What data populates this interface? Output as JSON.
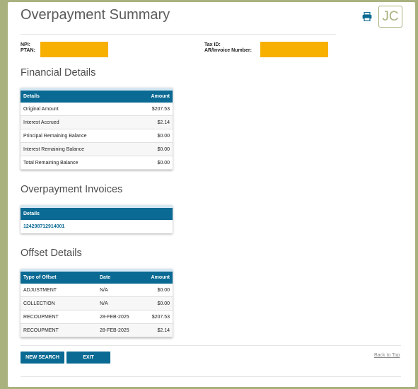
{
  "page": {
    "title": "Overpayment Summary",
    "user_initials": "JC"
  },
  "identity": {
    "npi_label": "NPI:",
    "ptan_label": "PTAN:",
    "tax_id_label": "Tax ID:",
    "ar_invoice_label": "AR/Invoice Number:",
    "redaction_color": "#f8b000"
  },
  "financial": {
    "title": "Financial Details",
    "headers": [
      "Details",
      "Amount"
    ],
    "rows": [
      [
        "Original Amount",
        "$207.53"
      ],
      [
        "Interest Accrued",
        "$2.14"
      ],
      [
        "Principal Remaining Balance",
        "$0.00"
      ],
      [
        "Interest Remaining Balance",
        "$0.00"
      ],
      [
        "Total Remaining Balance",
        "$0.00"
      ]
    ]
  },
  "invoices": {
    "title": "Overpayment Invoices",
    "header": "Details",
    "items": [
      "124298712914001"
    ]
  },
  "offset": {
    "title": "Offset Details",
    "headers": [
      "Type of Offset",
      "Date",
      "Amount"
    ],
    "rows": [
      [
        "ADJUSTMENT",
        "N/A",
        "$0.00"
      ],
      [
        "COLLECTION",
        "N/A",
        "$0.00"
      ],
      [
        "RECOUPMENT",
        "28-FEB-2025",
        "$207.53"
      ],
      [
        "RECOUPMENT",
        "28-FEB-2025",
        "$2.14"
      ]
    ]
  },
  "actions": {
    "new_search": "NEW SEARCH",
    "exit": "EXIT",
    "back_to_top": "Back to Top"
  },
  "colors": {
    "accent": "#0a6a93",
    "frame": "#a9b27f"
  }
}
